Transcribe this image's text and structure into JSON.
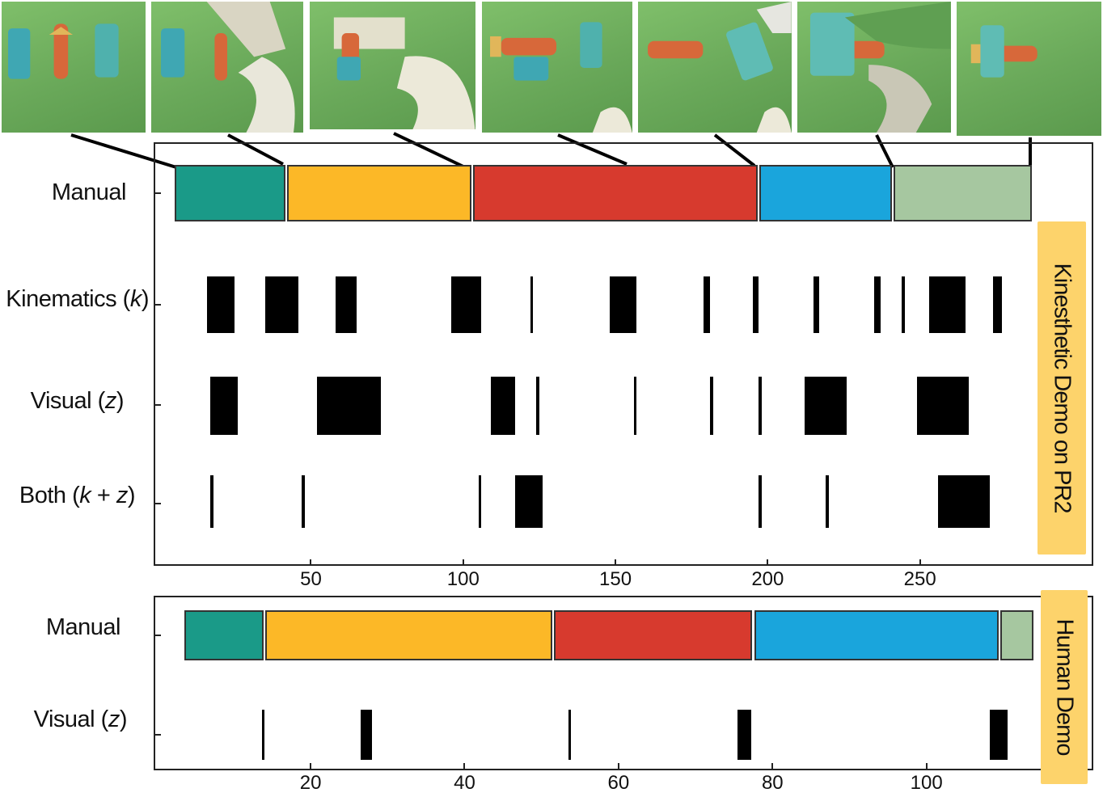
{
  "colors": {
    "teal": "#1a9a88",
    "yellow": "#fcb827",
    "red": "#d73a2e",
    "blue": "#1aa5dc",
    "sage": "#a6c7a0",
    "black": "#000000",
    "tag": "#fdd36b"
  },
  "thumbnails": [
    {
      "name": "thumb-1-parts-laid-out"
    },
    {
      "name": "thumb-2-robot-grasps"
    },
    {
      "name": "thumb-3-robot-inserts"
    },
    {
      "name": "thumb-4-robot-release"
    },
    {
      "name": "thumb-5-human-hand-wing"
    },
    {
      "name": "thumb-6-human-places-wing"
    },
    {
      "name": "thumb-7-assembled"
    }
  ],
  "top_panel": {
    "tag": "Kinesthetic Demo on PR2",
    "x_ticks": [
      "50",
      "100",
      "150",
      "200",
      "250"
    ],
    "rows": {
      "manual": "Manual",
      "kinematics": "Kinematics (k)",
      "visual": "Visual (z)",
      "both": "Both (k + z)"
    },
    "manual_segments": [
      {
        "start": 5,
        "end": 42,
        "color": "teal"
      },
      {
        "start": 42,
        "end": 103,
        "color": "yellow"
      },
      {
        "start": 103,
        "end": 197,
        "color": "red"
      },
      {
        "start": 197,
        "end": 241,
        "color": "blue"
      },
      {
        "start": 241,
        "end": 287,
        "color": "sage"
      }
    ],
    "kinematics_bars": [
      [
        16,
        25
      ],
      [
        35,
        46
      ],
      [
        58,
        65
      ],
      [
        96,
        106
      ],
      [
        122,
        123
      ],
      [
        148,
        157
      ],
      [
        179,
        181
      ],
      [
        195,
        197
      ],
      [
        215,
        217
      ],
      [
        235,
        237
      ],
      [
        244,
        245
      ],
      [
        253,
        265
      ],
      [
        274,
        277
      ]
    ],
    "visual_bars": [
      [
        17,
        26
      ],
      [
        52,
        73
      ],
      [
        109,
        117
      ],
      [
        124,
        125
      ],
      [
        156,
        157
      ],
      [
        181,
        182
      ],
      [
        197,
        198
      ],
      [
        212,
        226
      ],
      [
        249,
        266
      ]
    ],
    "both_bars": [
      [
        17,
        18
      ],
      [
        47,
        48
      ],
      [
        105,
        106
      ],
      [
        117,
        126
      ],
      [
        197,
        198
      ],
      [
        219,
        220
      ],
      [
        256,
        273
      ]
    ]
  },
  "bottom_panel": {
    "tag": "Human Demo",
    "x_ticks": [
      "20",
      "40",
      "60",
      "80",
      "100"
    ],
    "rows": {
      "manual": "Manual",
      "visual": "Visual (z)"
    },
    "manual_segments": [
      {
        "start": 3.5,
        "end": 14,
        "color": "teal"
      },
      {
        "start": 14,
        "end": 51.5,
        "color": "yellow"
      },
      {
        "start": 51.5,
        "end": 77.5,
        "color": "red"
      },
      {
        "start": 77.5,
        "end": 109.5,
        "color": "blue"
      },
      {
        "start": 109.5,
        "end": 114,
        "color": "sage"
      }
    ],
    "visual_bars": [
      [
        13.7,
        14
      ],
      [
        26.5,
        28
      ],
      [
        53.5,
        53.8
      ],
      [
        75.5,
        77.2
      ],
      [
        108.2,
        110.5
      ]
    ]
  }
}
